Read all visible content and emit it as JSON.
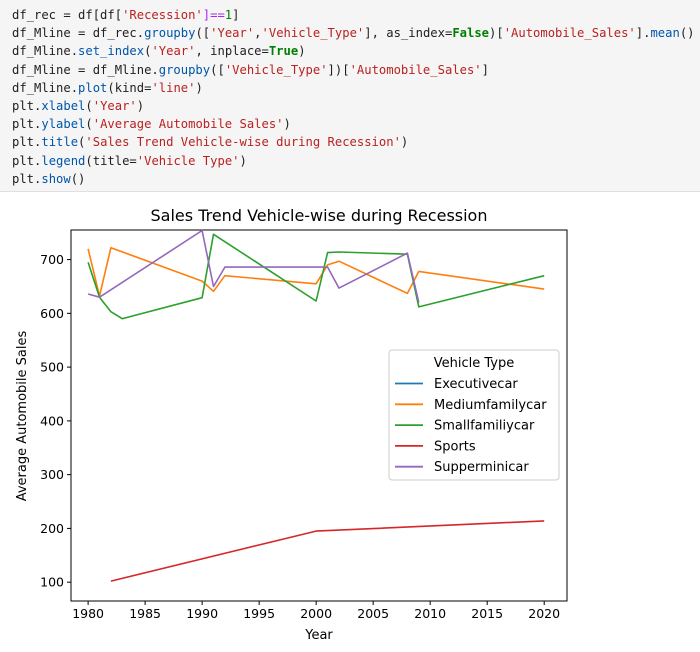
{
  "code": {
    "lines": [
      [
        {
          "t": "df_rec = df[df[",
          "c": ""
        },
        {
          "t": "'Recession'",
          "c": "str"
        },
        {
          "t": "]==",
          "c": "op"
        },
        {
          "t": "1",
          "c": "num"
        },
        {
          "t": "]",
          "c": ""
        }
      ],
      [
        {
          "t": "df_Mline = df_rec.",
          "c": ""
        },
        {
          "t": "groupby",
          "c": "fn"
        },
        {
          "t": "([",
          "c": ""
        },
        {
          "t": "'Year'",
          "c": "str"
        },
        {
          "t": ",",
          "c": ""
        },
        {
          "t": "'Vehicle_Type'",
          "c": "str"
        },
        {
          "t": "], as_index=",
          "c": ""
        },
        {
          "t": "False",
          "c": "kw"
        },
        {
          "t": ")[",
          "c": ""
        },
        {
          "t": "'Automobile_Sales'",
          "c": "str"
        },
        {
          "t": "].",
          "c": ""
        },
        {
          "t": "mean",
          "c": "fn"
        },
        {
          "t": "()",
          "c": ""
        }
      ],
      [
        {
          "t": "df_Mline.",
          "c": ""
        },
        {
          "t": "set_index",
          "c": "fn"
        },
        {
          "t": "(",
          "c": ""
        },
        {
          "t": "'Year'",
          "c": "str"
        },
        {
          "t": ", inplace=",
          "c": ""
        },
        {
          "t": "True",
          "c": "kw"
        },
        {
          "t": ")",
          "c": ""
        }
      ],
      [
        {
          "t": "df_Mline = df_Mline.",
          "c": ""
        },
        {
          "t": "groupby",
          "c": "fn"
        },
        {
          "t": "([",
          "c": ""
        },
        {
          "t": "'Vehicle_Type'",
          "c": "str"
        },
        {
          "t": "])[",
          "c": ""
        },
        {
          "t": "'Automobile_Sales'",
          "c": "str"
        },
        {
          "t": "]",
          "c": ""
        }
      ],
      [
        {
          "t": "df_Mline.",
          "c": ""
        },
        {
          "t": "plot",
          "c": "fn"
        },
        {
          "t": "(kind=",
          "c": ""
        },
        {
          "t": "'line'",
          "c": "str"
        },
        {
          "t": ")",
          "c": ""
        }
      ],
      [
        {
          "t": "plt.",
          "c": ""
        },
        {
          "t": "xlabel",
          "c": "fn"
        },
        {
          "t": "(",
          "c": ""
        },
        {
          "t": "'Year'",
          "c": "str"
        },
        {
          "t": ")",
          "c": ""
        }
      ],
      [
        {
          "t": "plt.",
          "c": ""
        },
        {
          "t": "ylabel",
          "c": "fn"
        },
        {
          "t": "(",
          "c": ""
        },
        {
          "t": "'Average Automobile Sales'",
          "c": "str"
        },
        {
          "t": ")",
          "c": ""
        }
      ],
      [
        {
          "t": "plt.",
          "c": ""
        },
        {
          "t": "title",
          "c": "fn"
        },
        {
          "t": "(",
          "c": ""
        },
        {
          "t": "'Sales Trend Vehicle-wise during Recession'",
          "c": "str"
        },
        {
          "t": ")",
          "c": ""
        }
      ],
      [
        {
          "t": "plt.",
          "c": ""
        },
        {
          "t": "legend",
          "c": "fn"
        },
        {
          "t": "(title=",
          "c": ""
        },
        {
          "t": "'Vehicle Type'",
          "c": "str"
        },
        {
          "t": ")",
          "c": ""
        }
      ],
      [
        {
          "t": "plt.",
          "c": ""
        },
        {
          "t": "show",
          "c": "fn"
        },
        {
          "t": "()",
          "c": ""
        }
      ]
    ]
  },
  "chart_data": {
    "type": "line",
    "title": "Sales Trend Vehicle-wise during Recession",
    "xlabel": "Year",
    "ylabel": "Average Automobile Sales",
    "xlim": [
      1978.5,
      2022
    ],
    "ylim": [
      65,
      755
    ],
    "xticks": [
      1980,
      1985,
      1990,
      1995,
      2000,
      2005,
      2010,
      2015,
      2020
    ],
    "yticks": [
      100,
      200,
      300,
      400,
      500,
      600,
      700
    ],
    "grid": false,
    "legend": {
      "title": "Vehicle Type",
      "placement": "center-right"
    },
    "series": [
      {
        "name": "Executivecar",
        "color": "#1f77b4",
        "points": []
      },
      {
        "name": "Mediumfamilycar",
        "color": "#ff7f0e",
        "points": [
          [
            1980,
            720
          ],
          [
            1981,
            632
          ],
          [
            1982,
            722
          ],
          [
            1990,
            660
          ],
          [
            1991,
            641
          ],
          [
            1992,
            670
          ],
          [
            2000,
            655
          ],
          [
            2001,
            690
          ],
          [
            2002,
            697
          ],
          [
            2008,
            637
          ],
          [
            2009,
            678
          ],
          [
            2020,
            645
          ]
        ]
      },
      {
        "name": "Smallfamiliycar",
        "color": "#2ca02c",
        "points": [
          [
            1980,
            695
          ],
          [
            1981,
            630
          ],
          [
            1982,
            603
          ],
          [
            1983,
            590
          ],
          [
            1990,
            629
          ],
          [
            1991,
            747
          ],
          [
            2000,
            623
          ],
          [
            2001,
            713
          ],
          [
            2002,
            714
          ],
          [
            2008,
            710
          ],
          [
            2009,
            612
          ],
          [
            2020,
            670
          ]
        ]
      },
      {
        "name": "Sports",
        "color": "#d62728",
        "points": [
          [
            1982,
            102
          ],
          [
            2000,
            195
          ],
          [
            2020,
            214
          ]
        ]
      },
      {
        "name": "Supperminicar",
        "color": "#9467bd",
        "points": [
          [
            1980,
            636
          ],
          [
            1981,
            630
          ],
          [
            1990,
            754
          ],
          [
            1991,
            650
          ],
          [
            1992,
            686
          ],
          [
            2000,
            686
          ],
          [
            2001,
            686
          ],
          [
            2002,
            647
          ],
          [
            2008,
            712
          ],
          [
            2009,
            620
          ]
        ]
      }
    ]
  }
}
